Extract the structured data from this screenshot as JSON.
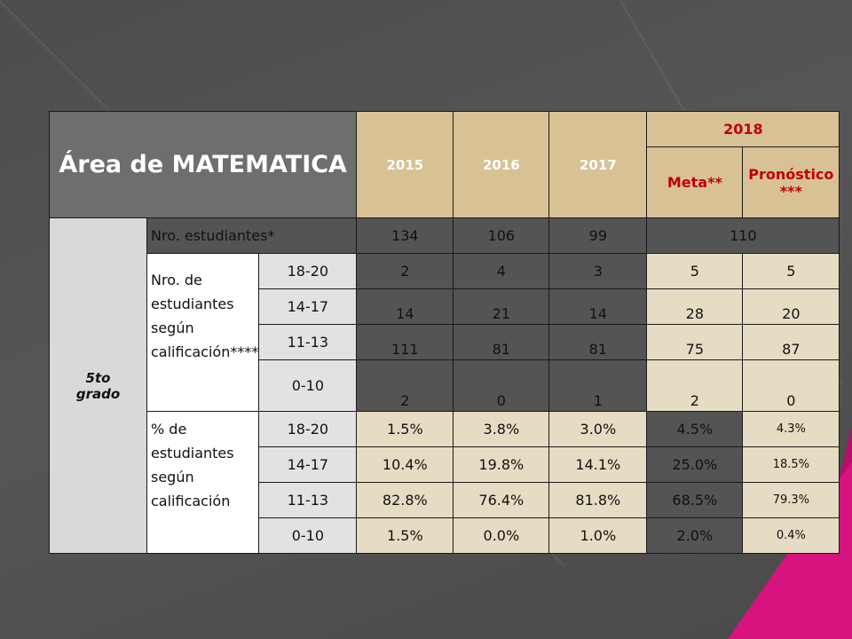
{
  "table": {
    "title": "Área de MATEMATICA",
    "years": [
      "2015",
      "2016",
      "2017"
    ],
    "year_2018": "2018",
    "meta": "Meta**",
    "pronostico": "Pronóstico ***",
    "grade": "5to grado",
    "nro_label": "Nro. estudiantes*",
    "nro_values": [
      "134",
      "106",
      "99"
    ],
    "nro_2018": "110",
    "group1_label": "Nro. de estudiantes según calificación****",
    "group1_rows": [
      {
        "range": "18-20",
        "v2015": "2",
        "v2016": "4",
        "v2017": "3",
        "meta": "5",
        "pron": "5"
      },
      {
        "range": "14-17",
        "v2015": "14",
        "v2016": "21",
        "v2017": "14",
        "meta": "28",
        "pron": "20"
      },
      {
        "range": "11-13",
        "v2015": "111",
        "v2016": "81",
        "v2017": "81",
        "meta": "75",
        "pron": "87"
      },
      {
        "range": "0-10",
        "v2015": "2",
        "v2016": "0",
        "v2017": "1",
        "meta": "2",
        "pron": "0"
      }
    ],
    "group2_label": "% de estudiantes según calificación",
    "group2_rows": [
      {
        "range": "18-20",
        "v2015": "1.5%",
        "v2016": "3.8%",
        "v2017": "3.0%",
        "meta": "4.5%",
        "pron": "4.3%"
      },
      {
        "range": "14-17",
        "v2015": "10.4%",
        "v2016": "19.8%",
        "v2017": "14.1%",
        "meta": "25.0%",
        "pron": "18.5%"
      },
      {
        "range": "11-13",
        "v2015": "82.8%",
        "v2016": "76.4%",
        "v2017": "81.8%",
        "meta": "68.5%",
        "pron": "79.3%"
      },
      {
        "range": "0-10",
        "v2015": "1.5%",
        "v2016": "0.0%",
        "v2017": "1.0%",
        "meta": "2.0%",
        "pron": "0.4%"
      }
    ]
  },
  "colors": {
    "header_gray": "#6e6e6e",
    "tan": "#d8c195",
    "red_text": "#c00000",
    "cream": "#e6dcc3",
    "dark_cell": "#545454",
    "accent_pink": "#d6137f"
  }
}
